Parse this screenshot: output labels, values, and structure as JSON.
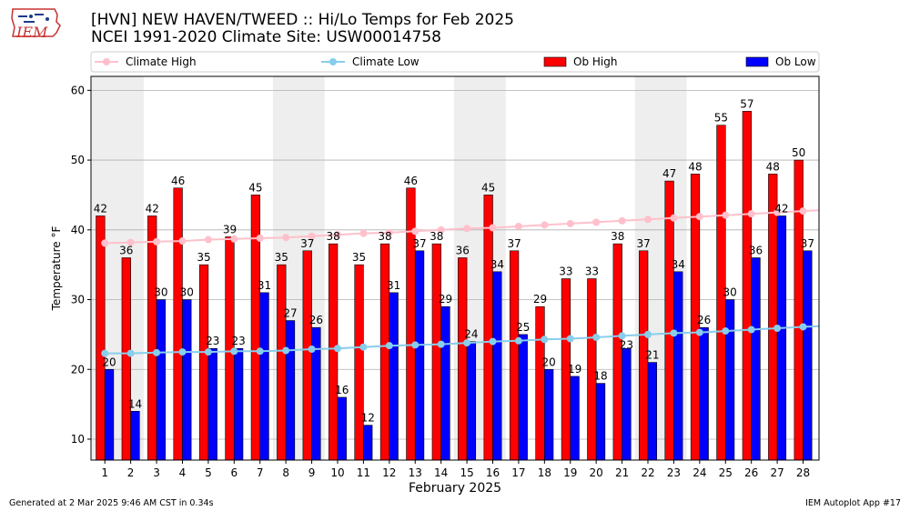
{
  "header": {
    "title_line1": "[HVN] NEW HAVEN/TWEED :: Hi/Lo Temps for Feb 2025",
    "title_line2": "NCEI 1991-2020 Climate Site: USW00014758",
    "logo_text": "IEM"
  },
  "footer": {
    "generated": "Generated at 2 Mar 2025 9:46 AM CST in 0.34s",
    "app": "IEM Autoplot App #17"
  },
  "colors": {
    "ob_high": "#ff0000",
    "ob_low": "#0000ff",
    "climate_high": "#ffc0cb",
    "climate_low": "#87ceeb",
    "weekend_shade": "#eeeeee"
  },
  "chart_data": {
    "type": "bar",
    "xlabel": "February 2025",
    "ylabel": "Temperature °F",
    "ylim": [
      7,
      62
    ],
    "yticks": [
      10,
      20,
      30,
      40,
      50,
      60
    ],
    "grid": "horizontal",
    "legend_position": "top",
    "shaded_day_ranges": [
      [
        1,
        2
      ],
      [
        8,
        9
      ],
      [
        15,
        16
      ],
      [
        22,
        23
      ]
    ],
    "categories": [
      "1",
      "2",
      "3",
      "4",
      "5",
      "6",
      "7",
      "8",
      "9",
      "10",
      "11",
      "12",
      "13",
      "14",
      "15",
      "16",
      "17",
      "18",
      "19",
      "20",
      "21",
      "22",
      "23",
      "24",
      "25",
      "26",
      "27",
      "28"
    ],
    "series": [
      {
        "name": "Ob High",
        "kind": "bar",
        "values": [
          42,
          36,
          42,
          46,
          35,
          39,
          45,
          35,
          37,
          38,
          35,
          38,
          46,
          38,
          36,
          45,
          37,
          29,
          33,
          33,
          38,
          37,
          47,
          48,
          55,
          57,
          48,
          50
        ]
      },
      {
        "name": "Ob Low",
        "kind": "bar",
        "values": [
          20,
          14,
          30,
          30,
          23,
          23,
          31,
          27,
          26,
          16,
          12,
          31,
          37,
          29,
          24,
          34,
          25,
          20,
          19,
          18,
          23,
          21,
          34,
          26,
          30,
          36,
          42,
          37
        ]
      },
      {
        "name": "Climate High",
        "kind": "line",
        "values": [
          38.1,
          38.2,
          38.3,
          38.4,
          38.6,
          38.7,
          38.8,
          38.9,
          39.1,
          39.3,
          39.5,
          39.6,
          39.8,
          40.0,
          40.2,
          40.3,
          40.5,
          40.7,
          40.9,
          41.1,
          41.3,
          41.5,
          41.7,
          41.9,
          42.1,
          42.3,
          42.5,
          42.7
        ]
      },
      {
        "name": "Climate Low",
        "kind": "line",
        "values": [
          22.3,
          22.3,
          22.4,
          22.5,
          22.5,
          22.6,
          22.6,
          22.7,
          22.9,
          23.0,
          23.2,
          23.4,
          23.5,
          23.6,
          23.8,
          24.0,
          24.1,
          24.3,
          24.4,
          24.6,
          24.8,
          25.0,
          25.2,
          25.3,
          25.5,
          25.7,
          25.9,
          26.1
        ]
      }
    ]
  }
}
